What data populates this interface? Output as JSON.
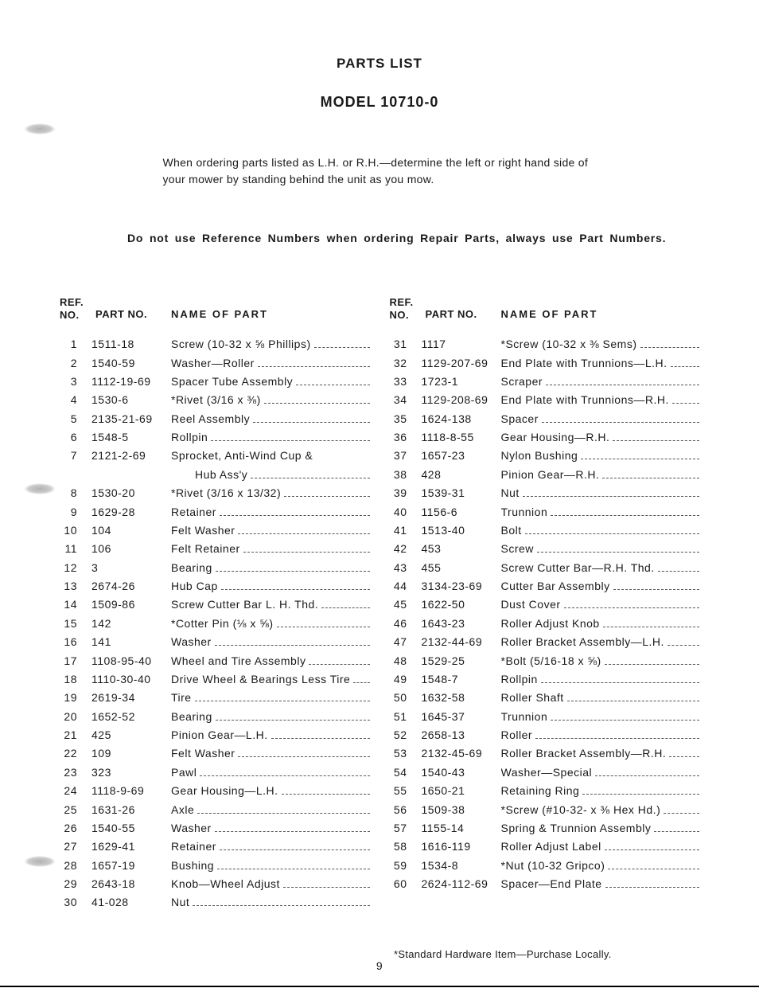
{
  "title": "PARTS LIST",
  "model": "MODEL 10710-0",
  "intro": "When ordering parts listed as L.H. or R.H.—determine the left or right hand side of your mower by standing behind the unit as you mow.",
  "warning": "Do not use Reference Numbers when ordering Repair Parts, always use Part Numbers.",
  "headers": {
    "ref": "REF. NO.",
    "part": "PART NO.",
    "name": "NAME OF PART"
  },
  "left": [
    {
      "ref": "1",
      "part": "1511-18",
      "name": "Screw (10-32 x ⅝ Phillips)"
    },
    {
      "ref": "2",
      "part": "1540-59",
      "name": "Washer—Roller"
    },
    {
      "ref": "3",
      "part": "1112-19-69",
      "name": "Spacer Tube Assembly"
    },
    {
      "ref": "4",
      "part": "1530-6",
      "name": "*Rivet (3/16 x ⅜)"
    },
    {
      "ref": "5",
      "part": "2135-21-69",
      "name": "Reel Assembly"
    },
    {
      "ref": "6",
      "part": "1548-5",
      "name": "Rollpin"
    },
    {
      "ref": "7",
      "part": "2121-2-69",
      "name": "Sprocket, Anti-Wind Cup &",
      "cont": "Hub Ass'y"
    },
    {
      "ref": "8",
      "part": "1530-20",
      "name": "*Rivet (3/16 x 13/32)"
    },
    {
      "ref": "9",
      "part": "1629-28",
      "name": "Retainer"
    },
    {
      "ref": "10",
      "part": "104",
      "name": "Felt Washer"
    },
    {
      "ref": "11",
      "part": "106",
      "name": "Felt Retainer"
    },
    {
      "ref": "12",
      "part": "3",
      "name": "Bearing"
    },
    {
      "ref": "13",
      "part": "2674-26",
      "name": "Hub Cap"
    },
    {
      "ref": "14",
      "part": "1509-86",
      "name": "Screw Cutter Bar L. H. Thd."
    },
    {
      "ref": "15",
      "part": "142",
      "name": "*Cotter Pin (⅛ x ⅝)"
    },
    {
      "ref": "16",
      "part": "141",
      "name": "Washer"
    },
    {
      "ref": "17",
      "part": "1108-95-40",
      "name": "Wheel and Tire Assembly"
    },
    {
      "ref": "18",
      "part": "1110-30-40",
      "name": "Drive Wheel & Bearings Less Tire"
    },
    {
      "ref": "19",
      "part": "2619-34",
      "name": "Tire"
    },
    {
      "ref": "20",
      "part": "1652-52",
      "name": "Bearing"
    },
    {
      "ref": "21",
      "part": "425",
      "name": "Pinion Gear—L.H."
    },
    {
      "ref": "22",
      "part": "109",
      "name": "Felt Washer"
    },
    {
      "ref": "23",
      "part": "323",
      "name": "Pawl"
    },
    {
      "ref": "24",
      "part": "1118-9-69",
      "name": "Gear Housing—L.H."
    },
    {
      "ref": "25",
      "part": "1631-26",
      "name": "Axle"
    },
    {
      "ref": "26",
      "part": "1540-55",
      "name": "Washer"
    },
    {
      "ref": "27",
      "part": "1629-41",
      "name": "Retainer"
    },
    {
      "ref": "28",
      "part": "1657-19",
      "name": "Bushing"
    },
    {
      "ref": "29",
      "part": "2643-18",
      "name": "Knob—Wheel Adjust"
    },
    {
      "ref": "30",
      "part": "41-028",
      "name": "Nut"
    }
  ],
  "right": [
    {
      "ref": "31",
      "part": "1117",
      "name": "*Screw (10-32 x ⅜ Sems)"
    },
    {
      "ref": "32",
      "part": "1129-207-69",
      "name": "End Plate with Trunnions—L.H."
    },
    {
      "ref": "33",
      "part": "1723-1",
      "name": "Scraper"
    },
    {
      "ref": "34",
      "part": "1129-208-69",
      "name": "End Plate with Trunnions—R.H."
    },
    {
      "ref": "35",
      "part": "1624-138",
      "name": "Spacer"
    },
    {
      "ref": "36",
      "part": "1118-8-55",
      "name": "Gear Housing—R.H."
    },
    {
      "ref": "37",
      "part": "1657-23",
      "name": "Nylon Bushing"
    },
    {
      "ref": "38",
      "part": "428",
      "name": "Pinion Gear—R.H."
    },
    {
      "ref": "39",
      "part": "1539-31",
      "name": "Nut"
    },
    {
      "ref": "40",
      "part": "1156-6",
      "name": "Trunnion"
    },
    {
      "ref": "41",
      "part": "1513-40",
      "name": "Bolt"
    },
    {
      "ref": "42",
      "part": "453",
      "name": "Screw"
    },
    {
      "ref": "43",
      "part": "455",
      "name": "Screw Cutter Bar—R.H. Thd."
    },
    {
      "ref": "44",
      "part": "3134-23-69",
      "name": "Cutter Bar Assembly"
    },
    {
      "ref": "45",
      "part": "1622-50",
      "name": "Dust Cover"
    },
    {
      "ref": "46",
      "part": "1643-23",
      "name": "Roller Adjust Knob"
    },
    {
      "ref": "47",
      "part": "2132-44-69",
      "name": "Roller Bracket Assembly—L.H."
    },
    {
      "ref": "48",
      "part": "1529-25",
      "name": "*Bolt (5/16-18 x ⅝)"
    },
    {
      "ref": "49",
      "part": "1548-7",
      "name": "Rollpin"
    },
    {
      "ref": "50",
      "part": "1632-58",
      "name": "Roller Shaft"
    },
    {
      "ref": "51",
      "part": "1645-37",
      "name": "Trunnion"
    },
    {
      "ref": "52",
      "part": "2658-13",
      "name": "Roller"
    },
    {
      "ref": "53",
      "part": "2132-45-69",
      "name": "Roller Bracket Assembly—R.H."
    },
    {
      "ref": "54",
      "part": "1540-43",
      "name": "Washer—Special"
    },
    {
      "ref": "55",
      "part": "1650-21",
      "name": "Retaining Ring"
    },
    {
      "ref": "56",
      "part": "1509-38",
      "name": "*Screw (#10-32- x ⅜ Hex Hd.)"
    },
    {
      "ref": "57",
      "part": "1155-14",
      "name": "Spring & Trunnion Assembly"
    },
    {
      "ref": "58",
      "part": "1616-119",
      "name": "Roller Adjust Label"
    },
    {
      "ref": "59",
      "part": "1534-8",
      "name": "*Nut (10-32 Gripco)"
    },
    {
      "ref": "60",
      "part": "2624-112-69",
      "name": "Spacer—End Plate"
    }
  ],
  "footnote": "*Standard Hardware Item—Purchase Locally.",
  "page_num": "9"
}
